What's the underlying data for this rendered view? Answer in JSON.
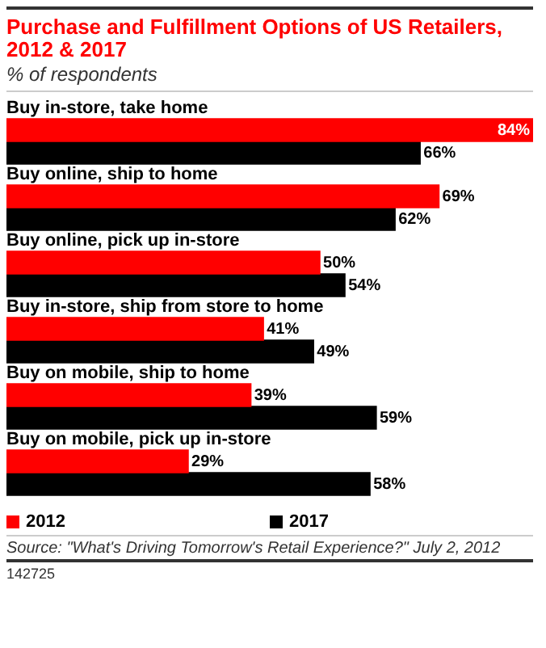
{
  "chart_data": {
    "type": "bar",
    "orientation": "horizontal",
    "title": "Purchase and Fulfillment Options of US Retailers, 2012 & 2017",
    "subtitle": "% of respondents",
    "categories": [
      "Buy in-store, take home",
      "Buy online, ship to home",
      "Buy online, pick up in-store",
      "Buy in-store, ship from store to home",
      "Buy on mobile, ship to home",
      "Buy on mobile, pick up in-store"
    ],
    "series": [
      {
        "name": "2012",
        "color": "#ff0000",
        "values": [
          84,
          69,
          50,
          41,
          39,
          29
        ],
        "value_labels": [
          "84%",
          "69%",
          "50%",
          "41%",
          "39%",
          "29%"
        ]
      },
      {
        "name": "2017",
        "color": "#000000",
        "values": [
          66,
          62,
          54,
          49,
          59,
          58
        ],
        "value_labels": [
          "66%",
          "62%",
          "54%",
          "49%",
          "59%",
          "58%"
        ]
      }
    ],
    "legend": "bottom",
    "annotations": [
      "Source: \"What's Driving Tomorrow's Retail Experience?\" July 2, 2012",
      "142725"
    ]
  }
}
